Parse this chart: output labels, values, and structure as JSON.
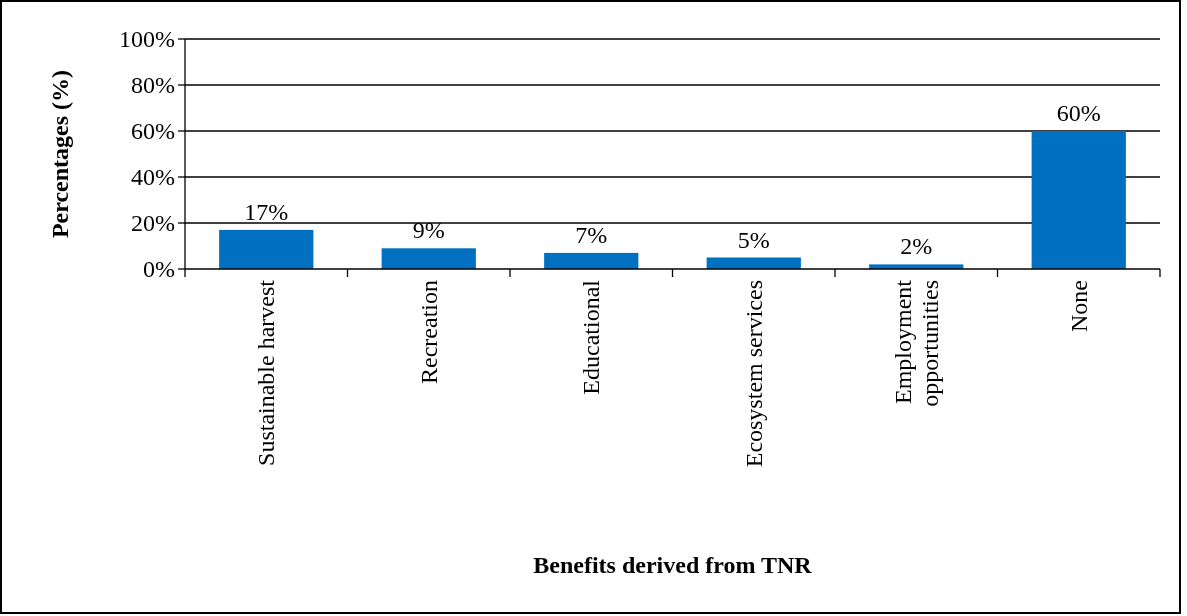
{
  "chart_data": {
    "type": "bar",
    "xlabel": "Benefits derived from TNR",
    "ylabel": "Percentages (%)",
    "categories": [
      "Sustainable harvest",
      "Recreation",
      "Educational",
      "Ecosystem services",
      "Employment opportunities",
      "None"
    ],
    "values": [
      17,
      9,
      7,
      5,
      2,
      60
    ],
    "color": "#0070c0",
    "value_labels": [
      "17%",
      "9%",
      "7%",
      "5%",
      "2%",
      "60%"
    ],
    "ylim": [
      0,
      100
    ],
    "yticks": [
      {
        "value": 0,
        "label": "0%"
      },
      {
        "value": 20,
        "label": "20%"
      },
      {
        "value": 40,
        "label": "40%"
      },
      {
        "value": 60,
        "label": "60%"
      },
      {
        "value": 80,
        "label": "80%"
      },
      {
        "value": 100,
        "label": "100%"
      }
    ],
    "grid": "y"
  }
}
